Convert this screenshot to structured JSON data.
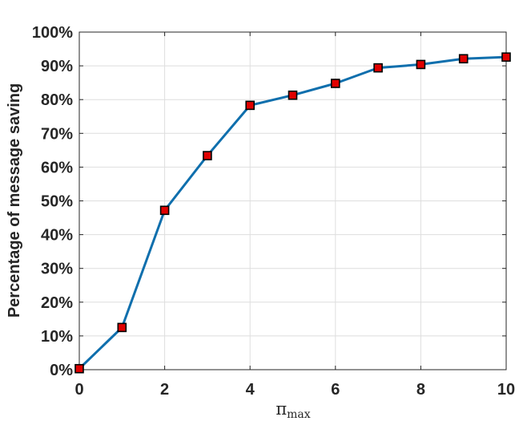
{
  "chart_data": {
    "type": "line",
    "x": [
      0,
      1,
      2,
      3,
      4,
      5,
      6,
      7,
      8,
      9,
      10
    ],
    "series": [
      {
        "values": [
          0.3,
          12.5,
          47.2,
          63.4,
          78.3,
          81.3,
          84.8,
          89.4,
          90.4,
          92.1,
          92.6
        ],
        "line_color": "#0f6fad",
        "marker": "square",
        "marker_face": "#e00000",
        "marker_edge": "#000000"
      }
    ],
    "xlim": [
      0,
      10
    ],
    "ylim": [
      0,
      100
    ],
    "xticks": [
      "0",
      "2",
      "4",
      "6",
      "8",
      "10"
    ],
    "yticks": [
      "0%",
      "10%",
      "20%",
      "30%",
      "40%",
      "50%",
      "60%",
      "70%",
      "80%",
      "90%",
      "100%"
    ],
    "ylabel": "Percentage of message saving",
    "xlabel": {
      "base": "π",
      "sub": "max"
    },
    "grid": true
  }
}
